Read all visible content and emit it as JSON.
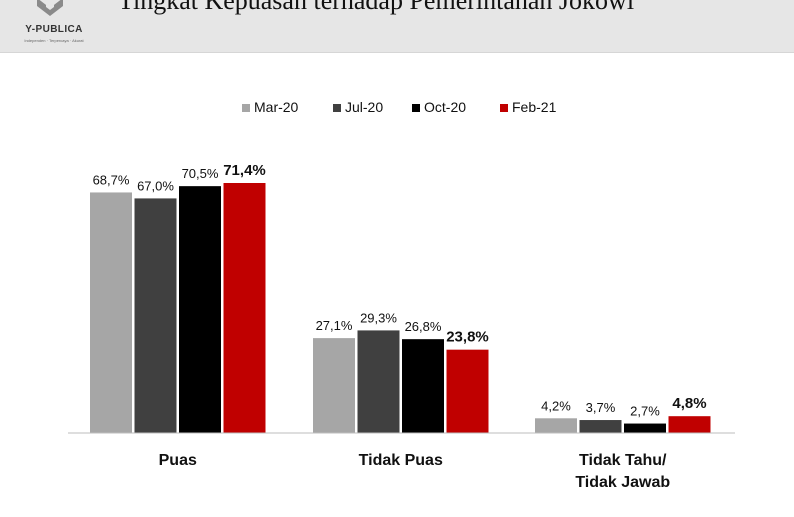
{
  "header": {
    "title": "Tingkat Kepuasan terhadap Pemerintahan Jokowi",
    "logo_text": "Y-PUBLICA",
    "logo_tagline": "Independen · Terpercaya · Akurat"
  },
  "colors": {
    "header_bg": "#e6e6e6",
    "Mar-20": "#a6a6a6",
    "Jul-20": "#404040",
    "Oct-20": "#000000",
    "Feb-21": "#c00000"
  },
  "chart_data": {
    "type": "bar",
    "title": "Tingkat Kepuasan terhadap Pemerintahan Jokowi",
    "categories": [
      [
        "Puas"
      ],
      [
        "Tidak Puas"
      ],
      [
        "Tidak Tahu/",
        "Tidak Jawab"
      ]
    ],
    "series": [
      {
        "name": "Mar-20",
        "values": [
          68.7,
          27.1,
          4.2
        ],
        "labels": [
          "68,7%",
          "27,1%",
          "4,2%"
        ]
      },
      {
        "name": "Jul-20",
        "values": [
          67.0,
          29.3,
          3.7
        ],
        "labels": [
          "67,0%",
          "29,3%",
          "3,7%"
        ]
      },
      {
        "name": "Oct-20",
        "values": [
          70.5,
          26.8,
          2.7
        ],
        "labels": [
          "70,5%",
          "26,8%",
          "2,7%"
        ]
      },
      {
        "name": "Feb-21",
        "values": [
          71.4,
          23.8,
          4.8
        ],
        "labels": [
          "71,4%",
          "23,8%",
          "4,8%"
        ],
        "bold_labels": true
      }
    ],
    "legend_position": "top-center",
    "grid": false,
    "ylim": [
      0,
      100
    ],
    "axis_labels_visible": false
  }
}
